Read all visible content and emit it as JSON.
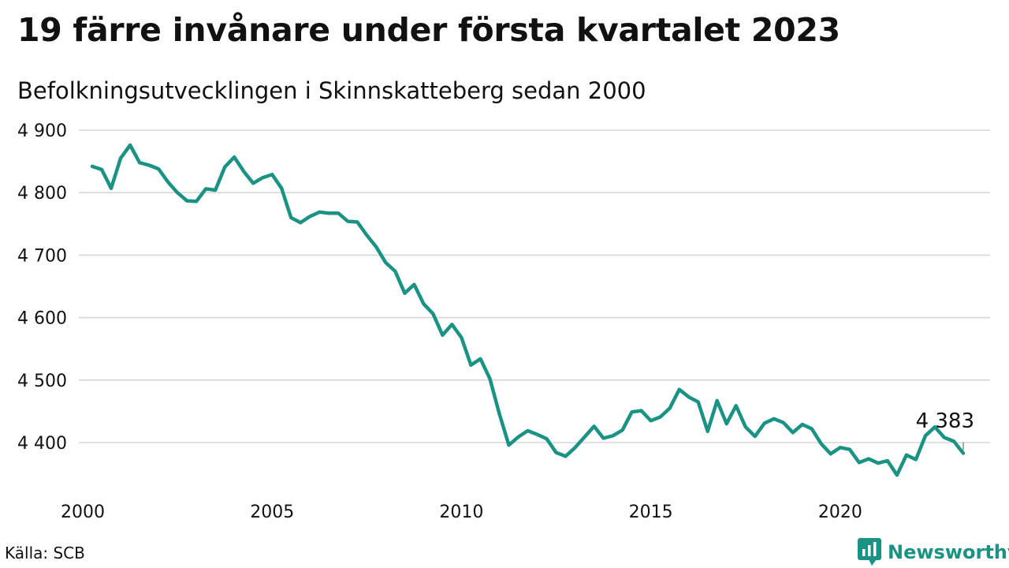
{
  "title": "19 färre invånare under första kvartalet 2023",
  "subtitle": "Befolkningsutvecklingen i Skinnskatteberg sedan 2000",
  "source": "Källa: SCB",
  "brand": {
    "name": "Newsworthy",
    "color": "#1a9384",
    "icon": "bar-chart-bubble-icon"
  },
  "chart_data": {
    "type": "line",
    "title": "19 färre invånare under första kvartalet 2023",
    "subtitle": "Befolkningsutvecklingen i Skinnskatteberg sedan 2000",
    "xlabel": "",
    "ylabel": "",
    "xlim": [
      2000,
      2023.25
    ],
    "ylim": [
      4330,
      4900
    ],
    "y_ticks": [
      4400,
      4500,
      4600,
      4700,
      4800,
      4900
    ],
    "y_tick_labels": [
      "4 400",
      "4 500",
      "4 600",
      "4 700",
      "4 800",
      "4 900"
    ],
    "x_ticks": [
      2000,
      2005,
      2010,
      2015,
      2020
    ],
    "x_tick_labels": [
      "2000",
      "2005",
      "2010",
      "2015",
      "2020"
    ],
    "grid": "horizontal",
    "line_color": "#1a9384",
    "last_value_label": "4 383",
    "series": [
      {
        "x": [
          2000.25,
          2000.5,
          2000.75,
          2001,
          2001.25,
          2001.5,
          2001.75,
          2002,
          2002.25,
          2002.5,
          2002.75,
          2003,
          2003.25,
          2003.5,
          2003.75,
          2004,
          2004.25,
          2004.5,
          2004.75,
          2005,
          2005.25,
          2005.5,
          2005.75,
          2006,
          2006.25,
          2006.5,
          2006.75,
          2007,
          2007.25,
          2007.5,
          2007.75,
          2008,
          2008.25,
          2008.5,
          2008.75,
          2009,
          2009.25,
          2009.5,
          2009.75,
          2010,
          2010.25,
          2010.5,
          2010.75,
          2011,
          2011.25,
          2011.5,
          2011.75,
          2012,
          2012.25,
          2012.5,
          2012.75,
          2013,
          2013.25,
          2013.5,
          2013.75,
          2014,
          2014.25,
          2014.5,
          2014.75,
          2015,
          2015.25,
          2015.5,
          2015.75,
          2016,
          2016.25,
          2016.5,
          2016.75,
          2017,
          2017.25,
          2017.5,
          2017.75,
          2018,
          2018.25,
          2018.5,
          2018.75,
          2019,
          2019.25,
          2019.5,
          2019.75,
          2020,
          2020.25,
          2020.5,
          2020.75,
          2021,
          2021.25,
          2021.5,
          2021.75,
          2022,
          2022.25,
          2022.5,
          2022.75,
          2023,
          2023.25
        ],
        "values": [
          4842,
          4837,
          4807,
          4855,
          4876,
          4848,
          4844,
          4838,
          4817,
          4800,
          4787,
          4786,
          4806,
          4804,
          4841,
          4857,
          4834,
          4815,
          4824,
          4829,
          4807,
          4760,
          4752,
          4762,
          4769,
          4767,
          4767,
          4754,
          4753,
          4732,
          4713,
          4688,
          4674,
          4639,
          4653,
          4622,
          4606,
          4572,
          4589,
          4568,
          4524,
          4534,
          4502,
          4446,
          4396,
          4409,
          4419,
          4413,
          4406,
          4384,
          4378,
          4392,
          4409,
          4426,
          4407,
          4411,
          4420,
          4449,
          4451,
          4435,
          4441,
          4455,
          4485,
          4473,
          4465,
          4418,
          4467,
          4430,
          4459,
          4425,
          4410,
          4431,
          4438,
          4432,
          4416,
          4429,
          4422,
          4398,
          4382,
          4392,
          4389,
          4368,
          4374,
          4367,
          4371,
          4348,
          4380,
          4373,
          4411,
          4425,
          4408,
          4402,
          4383
        ]
      }
    ]
  }
}
